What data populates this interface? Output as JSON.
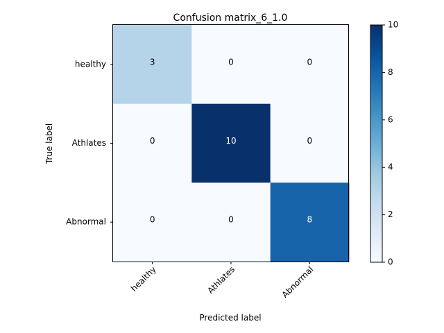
{
  "chart_data": {
    "type": "heatmap",
    "title": "Confusion matrix_6_1.0",
    "xlabel": "Predicted label",
    "ylabel": "True label",
    "x_categories": [
      "healthy",
      "Athlates",
      "Abnormal"
    ],
    "y_categories": [
      "healthy",
      "Athlates",
      "Abnormal"
    ],
    "values": [
      [
        3,
        0,
        0
      ],
      [
        0,
        10,
        0
      ],
      [
        0,
        0,
        8
      ]
    ],
    "colorbar": {
      "range": [
        0,
        10
      ],
      "ticks": [
        0,
        2,
        4,
        6,
        8,
        10
      ],
      "colormap": "Blues"
    },
    "grid": false
  }
}
